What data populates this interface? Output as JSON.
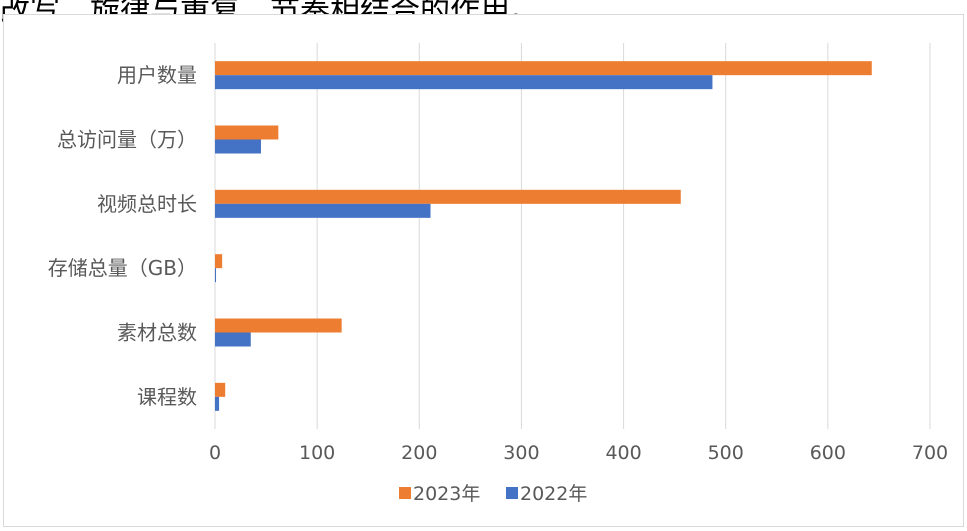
{
  "header_fragment": "改写，旋律与重复、节奏相结合的作用。",
  "chart_data": {
    "type": "bar",
    "orientation": "horizontal",
    "categories": [
      "用户数量",
      "总访问量（万）",
      "视频总时长",
      "存储总量（GB）",
      "素材总数",
      "课程数"
    ],
    "series": [
      {
        "name": "2023年",
        "color": "#ed7d31",
        "values": [
          643,
          62,
          456,
          7,
          124,
          10
        ]
      },
      {
        "name": "2022年",
        "color": "#4472c4",
        "values": [
          487,
          45,
          211,
          1,
          35,
          4
        ]
      }
    ],
    "xticks": [
      "0",
      "100",
      "200",
      "300",
      "400",
      "500",
      "600",
      "700"
    ],
    "xlim": [
      0,
      700
    ],
    "grid": true,
    "legend_position": "bottom"
  }
}
